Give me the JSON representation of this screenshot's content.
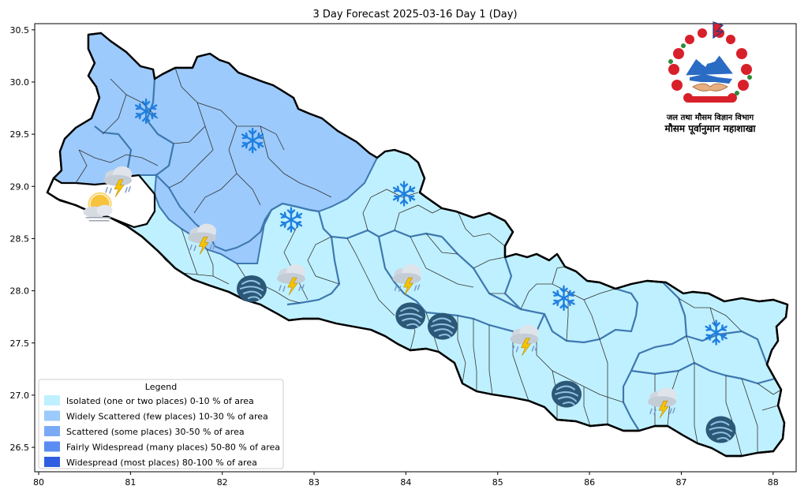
{
  "title": "3 Day Forecast 2025-03-16 Day 1 (Day)",
  "axes": {
    "x_ticks": [
      "80",
      "81",
      "82",
      "83",
      "84",
      "85",
      "86",
      "87",
      "88"
    ],
    "y_ticks": [
      "30.5",
      "30.0",
      "29.5",
      "29.0",
      "28.5",
      "28.0",
      "27.5",
      "27.0",
      "26.5"
    ]
  },
  "colors": {
    "isolated": "#bff0ff",
    "widely_scattered": "#9ccafc",
    "scattered": "#7aaaf5",
    "fairly_widespread": "#5a8cf2",
    "widespread": "#2f5ee0",
    "border": "#3f78b0"
  },
  "legend": {
    "title": "Legend",
    "items": [
      {
        "label": "Isolated (one or two places)  0-10 % of area",
        "color": "#bff0ff"
      },
      {
        "label": "Widely Scattered (few places) 10-30 % of area",
        "color": "#9ccafc"
      },
      {
        "label": "Scattered (some places) 30-50  % of area",
        "color": "#7aaaf5"
      },
      {
        "label": "Fairly Widespread (many places) 50-80 % of area",
        "color": "#5a8cf2"
      },
      {
        "label": "Widespread (most places) 80-100 % of area",
        "color": "#2f5ee0"
      }
    ]
  },
  "emblem": {
    "line1": "जल तथा मौसम विज्ञान विभाग",
    "line2": "मौसम पूर्वानुमान महाशाखा"
  },
  "weather_icons": [
    {
      "type": "snow-icon",
      "lon": 81.17,
      "lat": 29.72
    },
    {
      "type": "snow-icon",
      "lon": 82.33,
      "lat": 29.44
    },
    {
      "type": "snow-icon",
      "lon": 82.75,
      "lat": 28.68
    },
    {
      "type": "snow-icon",
      "lon": 83.98,
      "lat": 28.93
    },
    {
      "type": "snow-icon",
      "lon": 85.72,
      "lat": 27.93
    },
    {
      "type": "snow-icon",
      "lon": 87.38,
      "lat": 27.6
    },
    {
      "type": "thunderstorm-icon",
      "lon": 80.86,
      "lat": 29.08
    },
    {
      "type": "partly-cloudy-icon",
      "lon": 80.65,
      "lat": 28.8
    },
    {
      "type": "thunderstorm-icon",
      "lon": 81.78,
      "lat": 28.53
    },
    {
      "type": "thunderstorm-icon",
      "lon": 82.75,
      "lat": 28.14
    },
    {
      "type": "thunderstorm-icon",
      "lon": 84.01,
      "lat": 28.14
    },
    {
      "type": "thunderstorm-icon",
      "lon": 85.29,
      "lat": 27.56
    },
    {
      "type": "thunderstorm-icon",
      "lon": 86.79,
      "lat": 26.96
    },
    {
      "type": "windstorm-icon",
      "lon": 82.32,
      "lat": 28.02
    },
    {
      "type": "windstorm-icon",
      "lon": 84.05,
      "lat": 27.76
    },
    {
      "type": "windstorm-icon",
      "lon": 84.4,
      "lat": 27.66
    },
    {
      "type": "windstorm-icon",
      "lon": 85.75,
      "lat": 27.01
    },
    {
      "type": "windstorm-icon",
      "lon": 87.43,
      "lat": 26.67
    }
  ]
}
